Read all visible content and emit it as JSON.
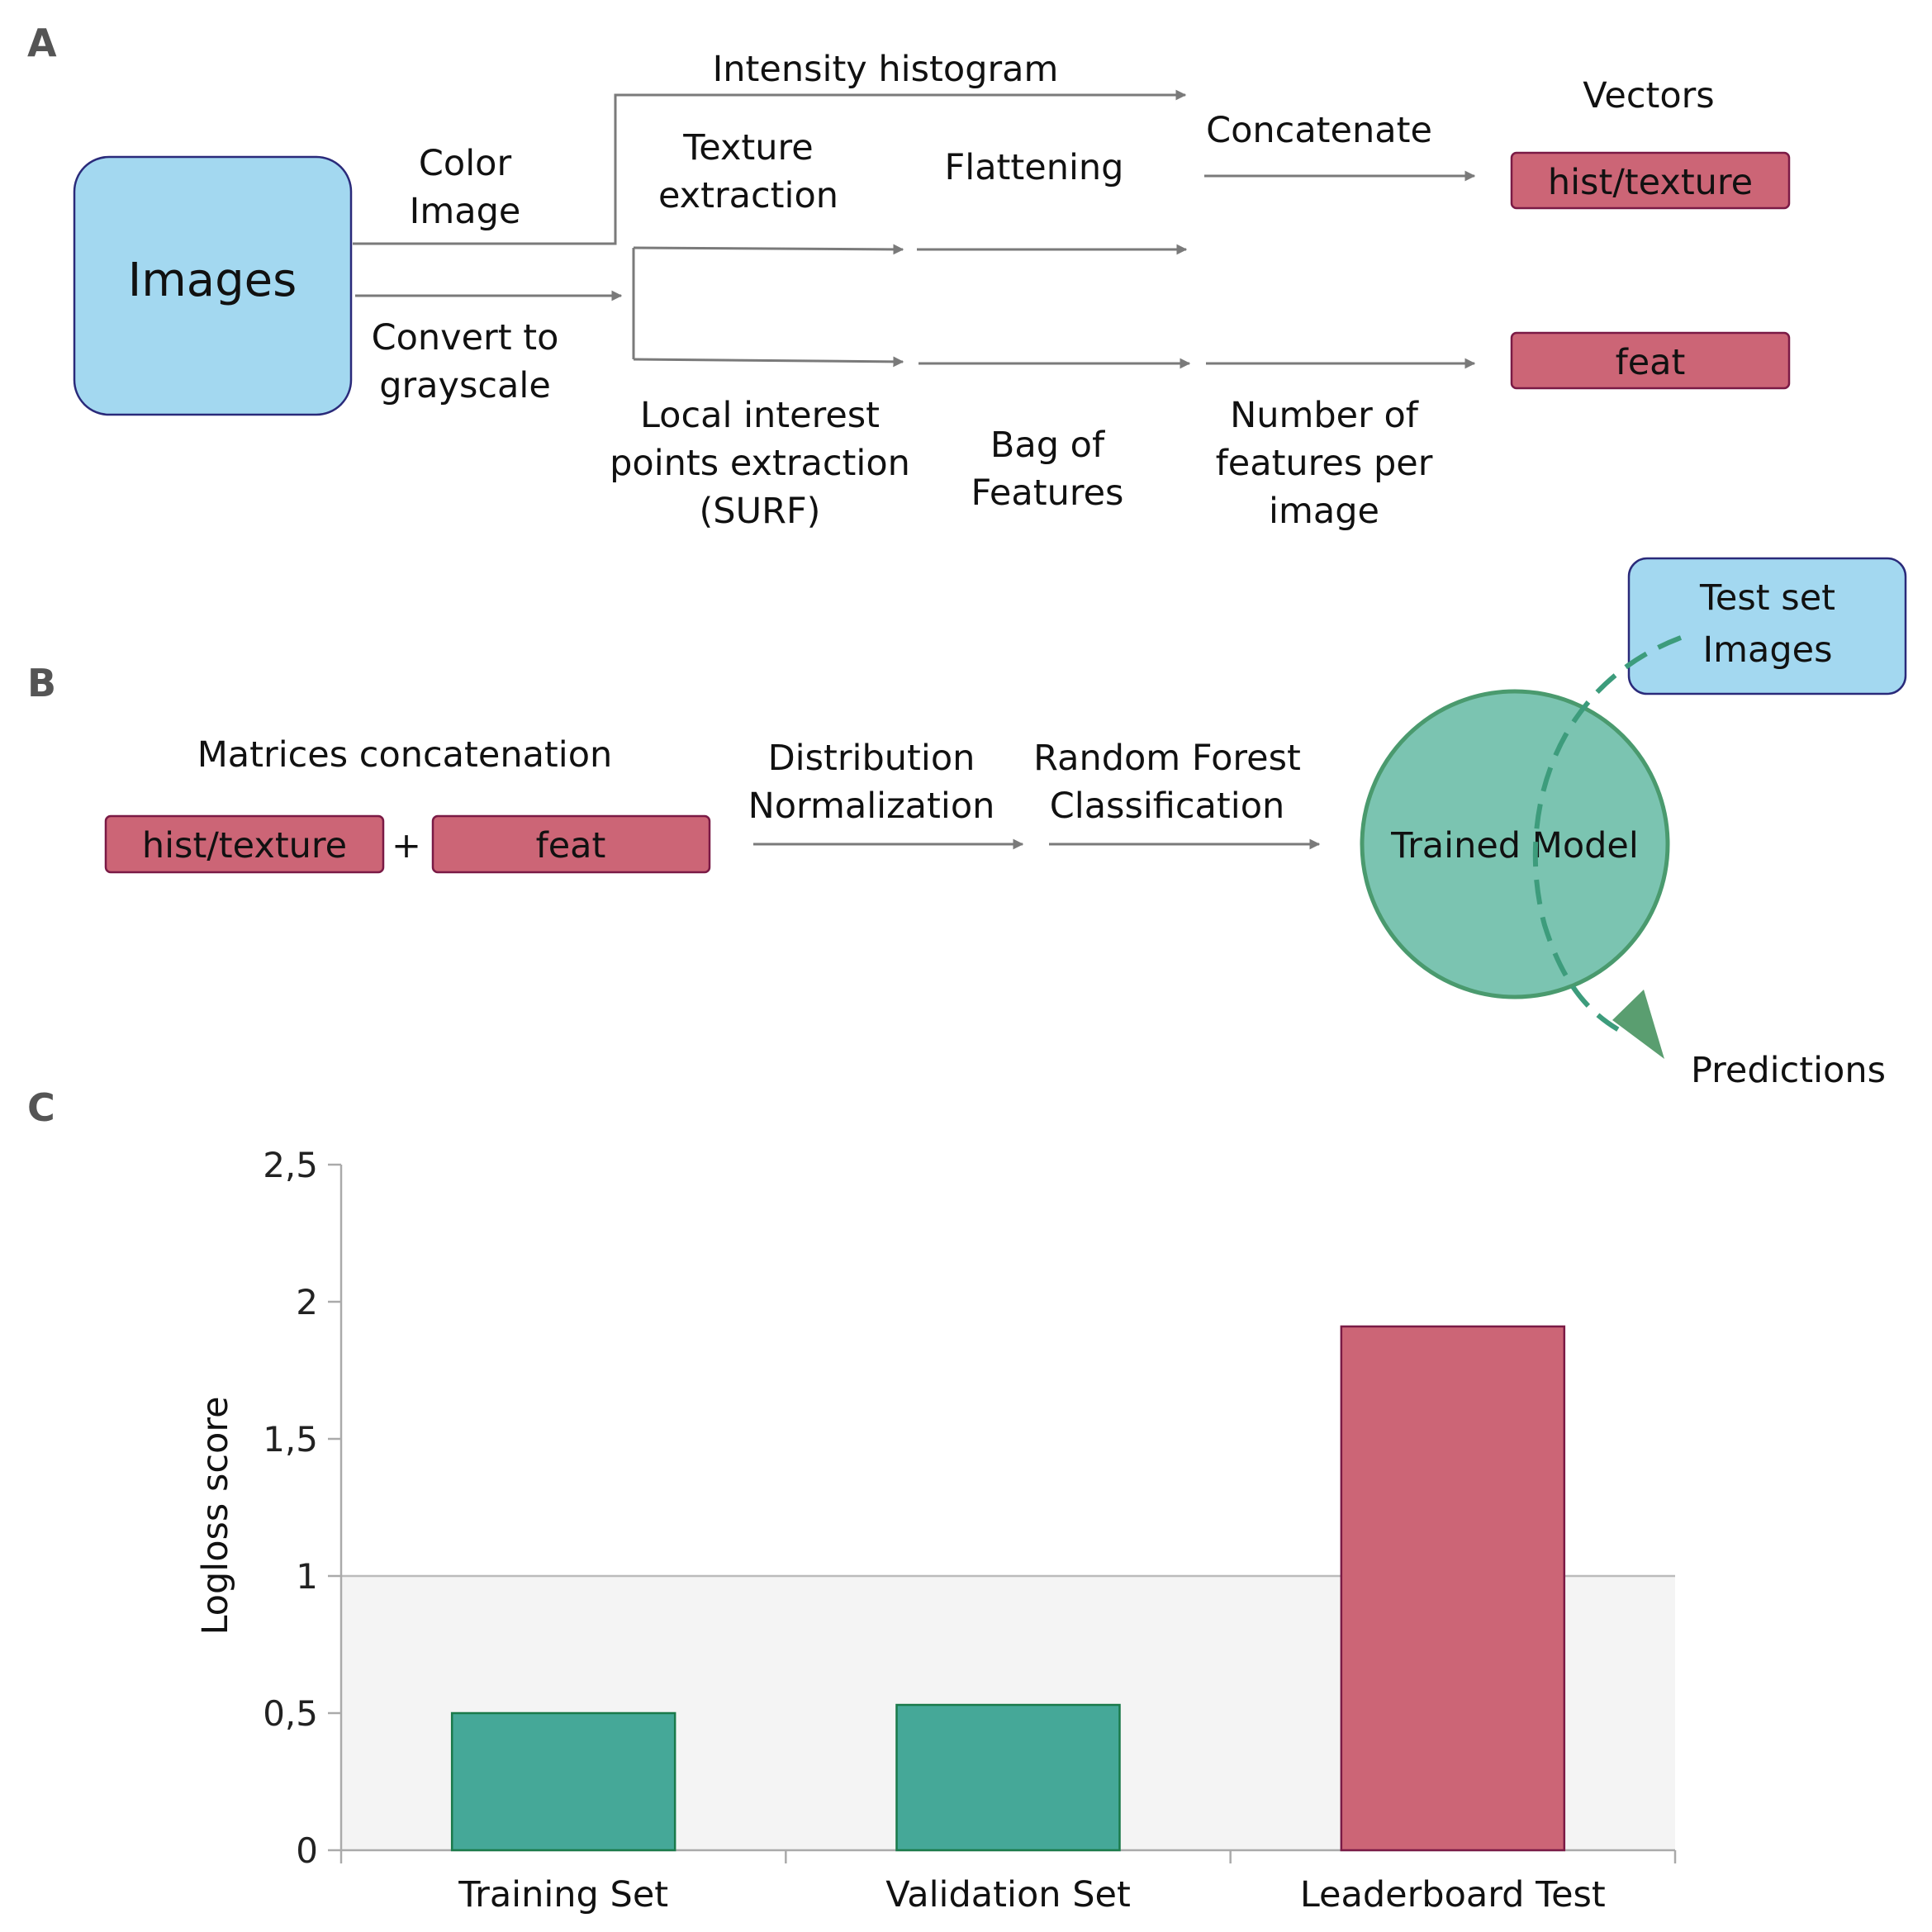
{
  "panel_labels": {
    "a": "A",
    "b": "B",
    "c": "C"
  },
  "panel_a": {
    "images_box": "Images",
    "color_image": [
      "Color",
      "Image"
    ],
    "convert_grayscale": [
      "Convert to",
      "grayscale"
    ],
    "intensity_histogram": "Intensity histogram",
    "texture_extraction": [
      "Texture",
      "extraction"
    ],
    "local_interest": [
      "Local interest",
      "points extraction",
      "(SURF)"
    ],
    "flattening": "Flattening",
    "bag_of_features": [
      "Bag of",
      "Features"
    ],
    "concatenate": "Concatenate",
    "number_features": [
      "Number of",
      "features per",
      "image"
    ],
    "vectors_title": "Vectors",
    "vector_hist": "hist/texture",
    "vector_feat": "feat"
  },
  "panel_b": {
    "matrices_title": "Matrices concatenation",
    "box_hist": "hist/texture",
    "plus": "+",
    "box_feat": "feat",
    "distribution_normalization": [
      "Distribution",
      "Normalization"
    ],
    "random_forest": [
      "Random Forest",
      "Classification"
    ],
    "trained_model": "Trained Model",
    "test_set": [
      "Test set",
      "Images"
    ],
    "predictions": "Predictions"
  },
  "chart_data": {
    "type": "bar",
    "categories": [
      "Training Set",
      "Validation Set",
      "Leaderboard Test"
    ],
    "values": [
      0.5,
      0.53,
      1.91
    ],
    "bar_colors": [
      "#45a898",
      "#45a898",
      "#cc6576"
    ],
    "ylabel": "Logloss score",
    "ylim": [
      0,
      2.5
    ],
    "yticks": [
      0,
      0.5,
      1,
      1.5,
      2,
      2.5
    ],
    "ytick_labels": [
      "0",
      "0,5",
      "1",
      "1,5",
      "2",
      "2,5"
    ],
    "shaded_band": [
      0,
      1
    ]
  },
  "colors": {
    "blue_box": "#a3d8f0",
    "red_box": "#cc6576",
    "model_circle": "#7bc4b1",
    "model_stroke": "#4a9a6e",
    "arrow": "#7a7a7a"
  }
}
